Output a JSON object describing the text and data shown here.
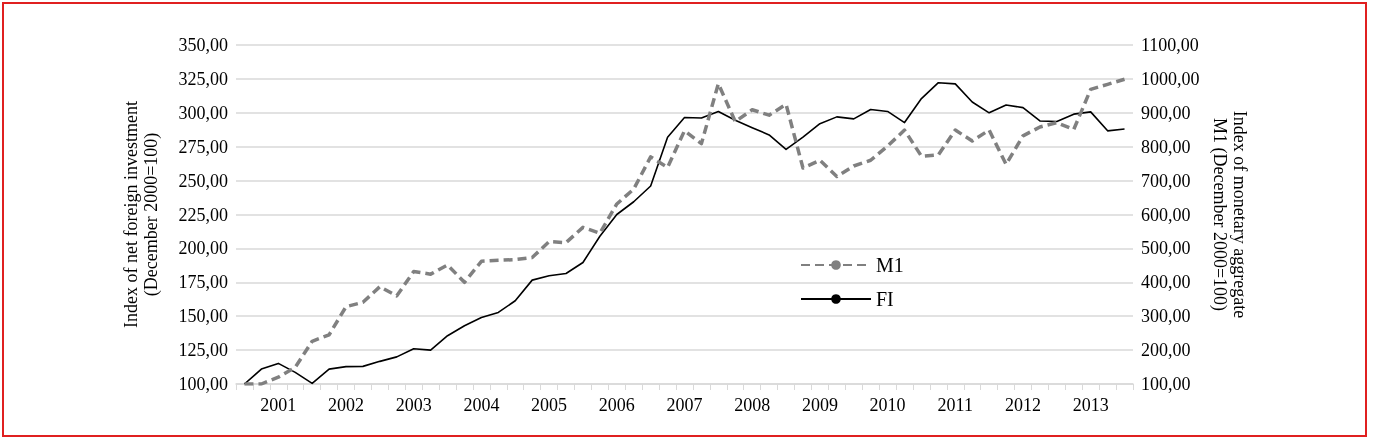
{
  "chart_data": {
    "type": "line",
    "ylabel": "Index of net foreign investment\n(December 2000=100)",
    "y2label": "Index of monetary aggregate\nM1 (December 2000=100)",
    "categories": [
      null,
      null,
      "2001",
      null,
      null,
      null,
      "2002",
      null,
      null,
      null,
      "2003",
      null,
      null,
      null,
      "2004",
      null,
      null,
      null,
      "2005",
      null,
      null,
      null,
      "2006",
      null,
      null,
      null,
      "2007",
      null,
      null,
      null,
      "2008",
      null,
      null,
      null,
      "2009",
      null,
      null,
      null,
      "2010",
      null,
      null,
      null,
      "2011",
      null,
      null,
      null,
      "2012",
      null,
      null,
      null,
      "2013",
      null,
      null
    ],
    "series": [
      {
        "name": "M1",
        "color": "#808080",
        "line_style": "dashed",
        "axis": "y2",
        "values": [
          100,
          100,
          120,
          149,
          226,
          245,
          328,
          341,
          387,
          360,
          432,
          424,
          451,
          400,
          462,
          465,
          467,
          473,
          520,
          517,
          562,
          545,
          631,
          675,
          770,
          739,
          847,
          809,
          986,
          874,
          909,
          893,
          925,
          737,
          760,
          712,
          743,
          760,
          802,
          849,
          772,
          776,
          849,
          817,
          849,
          748,
          832,
          858,
          871,
          851,
          969,
          984,
          999
        ]
      },
      {
        "name": "FI",
        "color": "#000000",
        "line_style": "solid",
        "values": [
          100,
          111,
          115.2,
          108.6,
          100.5,
          111,
          112.8,
          113,
          116.7,
          120,
          126,
          125,
          135.6,
          143,
          149,
          152.8,
          161.4,
          176.6,
          179.8,
          181.5,
          189.6,
          209,
          225,
          234.4,
          246,
          282,
          296.5,
          296.2,
          301,
          294.5,
          289,
          283.7,
          273,
          282,
          292,
          297,
          295.5,
          302.4,
          301,
          292.8,
          310.5,
          322.2,
          321.3,
          308,
          300,
          305.8,
          303.8,
          294,
          293.6,
          299,
          300.7,
          286.7,
          288
        ]
      }
    ],
    "ylim": [
      100,
      350
    ],
    "yticks": [
      {
        "value": 100,
        "label": "100,00"
      },
      {
        "value": 125,
        "label": "125,00"
      },
      {
        "value": 150,
        "label": "150,00"
      },
      {
        "value": 175,
        "label": "175,00"
      },
      {
        "value": 200,
        "label": "200,00"
      },
      {
        "value": 225,
        "label": "225,00"
      },
      {
        "value": 250,
        "label": "250,00"
      },
      {
        "value": 275,
        "label": "275,00"
      },
      {
        "value": 300,
        "label": "300,00"
      },
      {
        "value": 325,
        "label": "325,00"
      },
      {
        "value": 350,
        "label": "350,00"
      }
    ],
    "y2lim": [
      100,
      1100
    ],
    "y2ticks": [
      {
        "value": 100,
        "label": "100,00"
      },
      {
        "value": 200,
        "label": "200,00"
      },
      {
        "value": 300,
        "label": "300,00"
      },
      {
        "value": 400,
        "label": "400,00"
      },
      {
        "value": 500,
        "label": "500,00"
      },
      {
        "value": 600,
        "label": "600,00"
      },
      {
        "value": 700,
        "label": "700,00"
      },
      {
        "value": 800,
        "label": "800,00"
      },
      {
        "value": 900,
        "label": "900,00"
      },
      {
        "value": 1000,
        "label": "1000,00"
      },
      {
        "value": 1100,
        "label": "1100,00"
      }
    ],
    "grid": "y",
    "legend": "center",
    "marker": "none"
  }
}
